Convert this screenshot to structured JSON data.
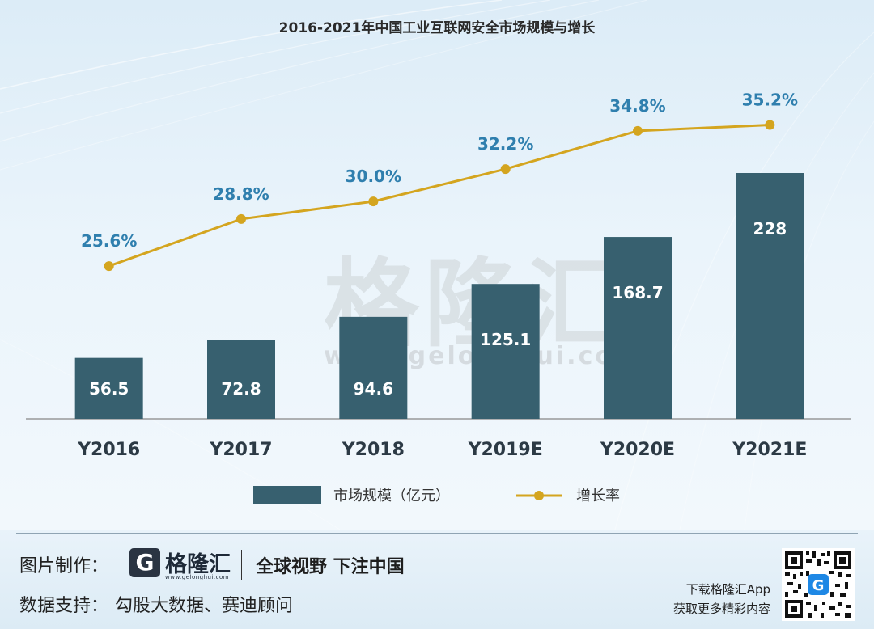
{
  "chart_data": {
    "type": "bar",
    "title": "2016-2021年中国工业互联网安全市场规模与增长",
    "categories": [
      "Y2016",
      "Y2017",
      "Y2018",
      "Y2019E",
      "Y2020E",
      "Y2021E"
    ],
    "series": [
      {
        "name": "市场规模（亿元）",
        "kind": "bar",
        "values": [
          56.5,
          72.8,
          94.6,
          125.1,
          168.7,
          228
        ],
        "labels": [
          "56.5",
          "72.8",
          "94.6",
          "125.1",
          "168.7",
          "228"
        ]
      },
      {
        "name": "增长率",
        "kind": "line",
        "values": [
          25.6,
          28.8,
          30.0,
          32.2,
          34.8,
          35.2
        ],
        "labels": [
          "25.6%",
          "28.8%",
          "30.0%",
          "32.2%",
          "34.8%",
          "35.2%"
        ]
      }
    ],
    "ylim": [
      0,
      228
    ],
    "growth_ylim": [
      24,
      36
    ],
    "xlabel": "",
    "ylabel": "",
    "grid": false,
    "legend_position": "bottom-center"
  },
  "colors": {
    "bar": "#37606f",
    "line": "#d4a51f",
    "growth_label": "#2f7fae",
    "bar_label": "#ffffff",
    "axis": "#999999"
  },
  "watermark": {
    "cn": "格隆汇",
    "url": "www.gelonghui.com"
  },
  "footer": {
    "credit_label": "图片制作：",
    "logo_text": "格隆汇",
    "logo_letter": "G",
    "logo_url": "www.gelonghui.com",
    "slogan": "全球视野 下注中国",
    "support_label": "数据支持：",
    "support_text": "勾股大数据、赛迪顾问",
    "app_line1": "下载格隆汇App",
    "app_line2": "获取更多精彩内容"
  },
  "icons": {
    "qr": "qr-code-icon"
  }
}
